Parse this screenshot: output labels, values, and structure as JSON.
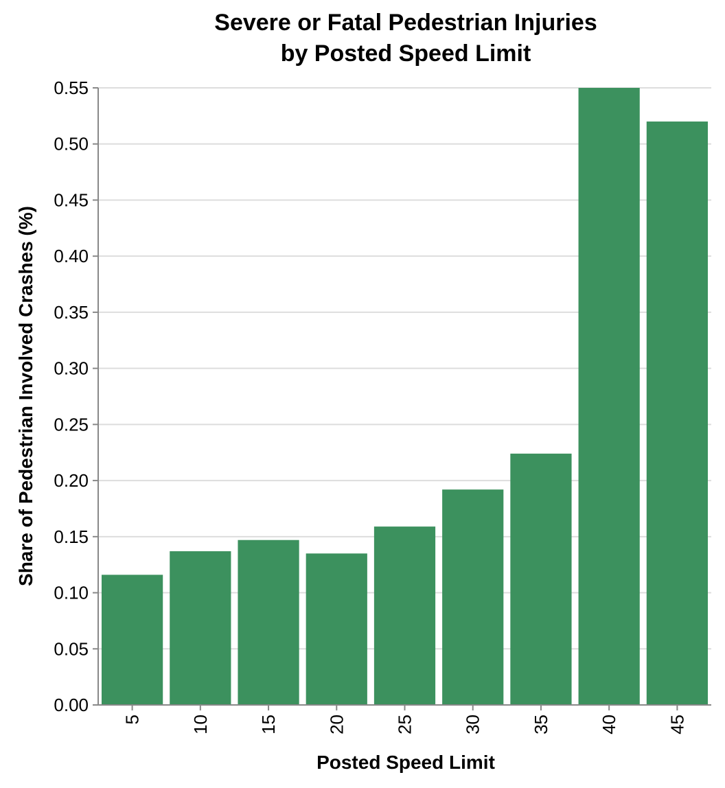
{
  "chart_data": {
    "type": "bar",
    "title": [
      "Severe or Fatal Pedestrian Injuries",
      "by Posted Speed Limit"
    ],
    "xlabel": "Posted Speed Limit",
    "ylabel": "Share of Pedestrian Involved Crashes (%)",
    "categories": [
      "5",
      "10",
      "15",
      "20",
      "25",
      "30",
      "35",
      "40",
      "45"
    ],
    "values": [
      0.116,
      0.137,
      0.147,
      0.135,
      0.159,
      0.192,
      0.224,
      0.55,
      0.52
    ],
    "ylim": [
      0,
      0.55
    ],
    "yticks": [
      "0.00",
      "0.05",
      "0.10",
      "0.15",
      "0.20",
      "0.25",
      "0.30",
      "0.35",
      "0.40",
      "0.45",
      "0.50",
      "0.55"
    ],
    "bar_color": "#3c915e",
    "grid": true,
    "legend": "none"
  }
}
